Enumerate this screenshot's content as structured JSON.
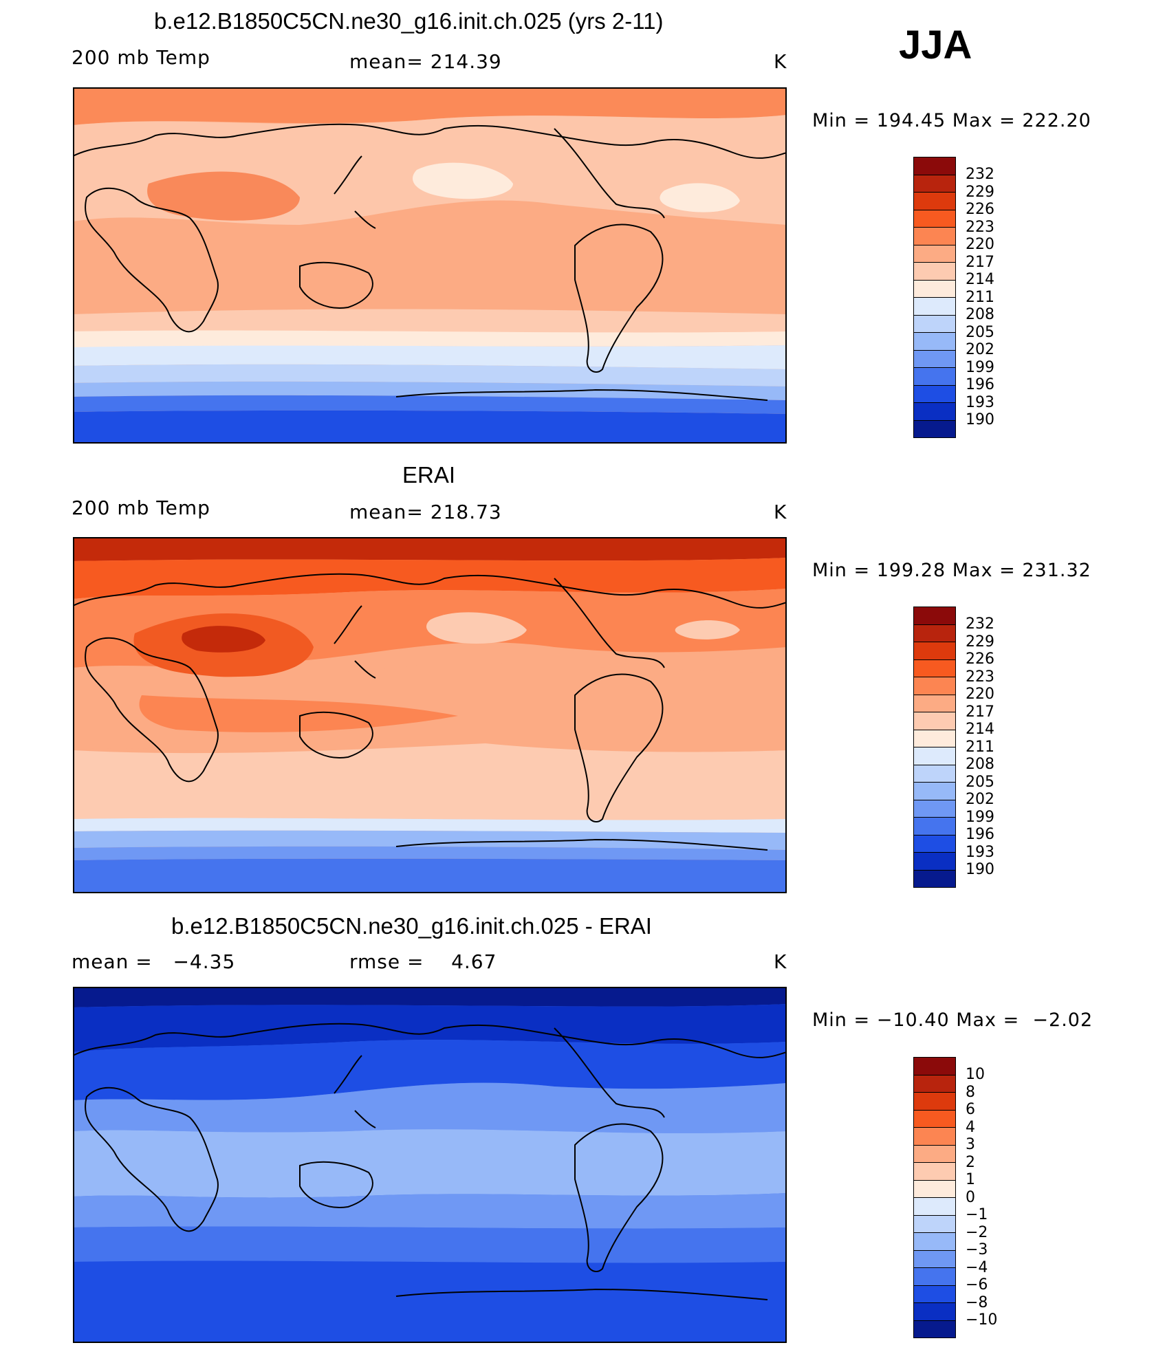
{
  "season": "JJA",
  "panels": [
    {
      "id": "model",
      "title": "b.e12.B1850C5CN.ne30_g16.init.ch.025 (yrs 2-11)",
      "left_label": "200 mb Temp",
      "center_label": "mean= 214.39",
      "units": "K",
      "min_max": "Min = 194.45 Max = 222.20",
      "colorbar_labels": [
        "232",
        "229",
        "226",
        "223",
        "220",
        "217",
        "214",
        "211",
        "208",
        "205",
        "202",
        "199",
        "196",
        "193",
        "190"
      ]
    },
    {
      "id": "obs",
      "title": "ERAI",
      "left_label": "200 mb Temp",
      "center_label": "mean= 218.73",
      "units": "K",
      "min_max": "Min = 199.28 Max = 231.32",
      "colorbar_labels": [
        "232",
        "229",
        "226",
        "223",
        "220",
        "217",
        "214",
        "211",
        "208",
        "205",
        "202",
        "199",
        "196",
        "193",
        "190"
      ]
    },
    {
      "id": "diff",
      "title": "b.e12.B1850C5CN.ne30_g16.init.ch.025 - ERAI",
      "left_label": "mean =   −4.35",
      "center_label": "rmse =    4.67",
      "units": "K",
      "min_max": "Min = −10.40 Max =  −2.02",
      "colorbar_labels": [
        "10",
        "8",
        "6",
        "4",
        "3",
        "2",
        "1",
        "0",
        "−1",
        "−2",
        "−3",
        "−4",
        "−6",
        "−8",
        "−10"
      ]
    }
  ],
  "colorbar_colors": [
    "#8b0a0a",
    "#b8240d",
    "#dd3a0d",
    "#f75a20",
    "#fc8552",
    "#fcab84",
    "#fdcbb1",
    "#feebdc",
    "#ddeafc",
    "#bed4fa",
    "#97b9f8",
    "#6f98f4",
    "#4574ee",
    "#1e4ee4",
    "#0a2fc3",
    "#061a8e"
  ],
  "field_colors": {
    "model": {
      "north_pole": "#fb8a58",
      "midlat_n": "#fdc6aa",
      "tropics": "#fcab84",
      "warm": "#f9895a",
      "s_mid": "#fdcbb1",
      "s_transition": "#feebdc",
      "s_subpolar": "#ddeafc",
      "s_60": "#bed4fa",
      "s_65": "#97b9f8",
      "s_70": "#4574ee",
      "antarctic": "#1e4ee4"
    },
    "obs": {
      "north_pole": "#c42a0a",
      "arctic": "#f75a20",
      "midlat_n": "#fc8552",
      "tropics": "#fcab84",
      "warm": "#f15a22",
      "s_mid": "#fcab84",
      "s_transition": "#fdcbb1",
      "s_subpolar": "#ddeafc",
      "s_60": "#97b9f8",
      "s_65": "#6f98f4",
      "antarctic": "#4574ee"
    },
    "diff": {
      "north_pole": "#061a8e",
      "arctic": "#0a2fc3",
      "midlat_n": "#1e4ee4",
      "tropics": "#97b9f8",
      "subtrop": "#6f98f4",
      "s_mid": "#4574ee",
      "s_high": "#1e4ee4",
      "antarctic": "#1e4ee4"
    }
  }
}
